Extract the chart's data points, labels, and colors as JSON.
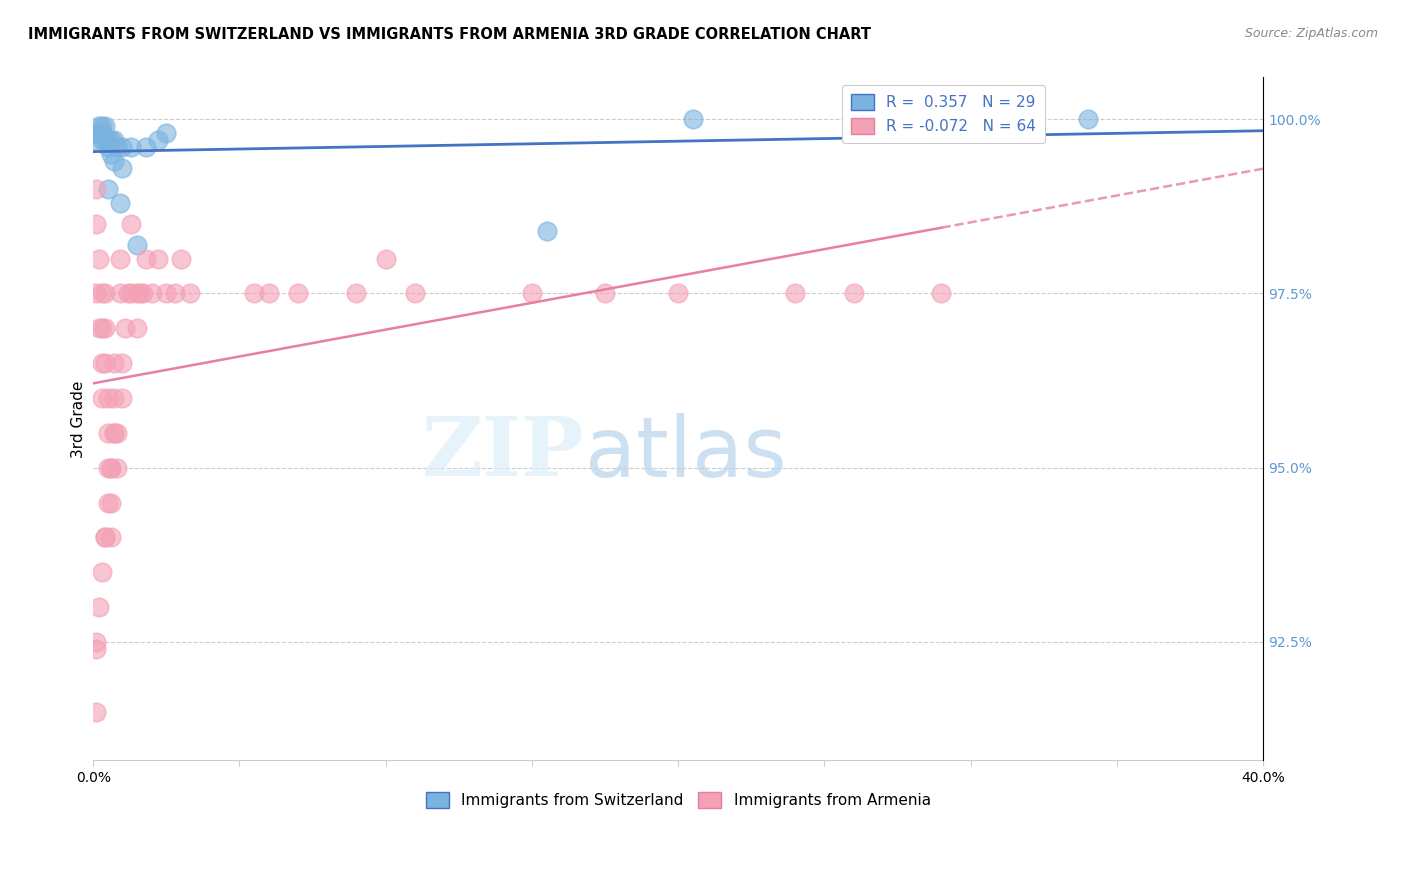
{
  "title": "IMMIGRANTS FROM SWITZERLAND VS IMMIGRANTS FROM ARMENIA 3RD GRADE CORRELATION CHART",
  "source": "Source: ZipAtlas.com",
  "ylabel": "3rd Grade",
  "ylabel_ticks": [
    "100.0%",
    "97.5%",
    "95.0%",
    "92.5%"
  ],
  "ylabel_values": [
    1.0,
    0.975,
    0.95,
    0.925
  ],
  "ymin": 0.908,
  "ymax": 1.006,
  "xmin": 0.0,
  "xmax": 0.4,
  "legend_r_swiss": "0.357",
  "legend_n_swiss": "29",
  "legend_r_armenia": "-0.072",
  "legend_n_armenia": "64",
  "legend_label_swiss": "Immigrants from Switzerland",
  "legend_label_armenia": "Immigrants from Armenia",
  "color_swiss": "#7ab3e0",
  "color_armenia": "#f4a0b5",
  "color_swiss_line": "#4472c4",
  "color_armenia_line": "#e87ea1",
  "color_right_axis": "#5b9bd5",
  "swiss_x": [
    0.001,
    0.001,
    0.002,
    0.002,
    0.003,
    0.003,
    0.003,
    0.004,
    0.004,
    0.005,
    0.005,
    0.005,
    0.006,
    0.006,
    0.007,
    0.007,
    0.008,
    0.009,
    0.01,
    0.01,
    0.013,
    0.015,
    0.018,
    0.022,
    0.155,
    0.205,
    0.27,
    0.34,
    0.025
  ],
  "swiss_y": [
    0.998,
    0.997,
    0.998,
    0.999,
    0.998,
    0.997,
    0.999,
    0.997,
    0.999,
    0.99,
    0.996,
    0.997,
    0.995,
    0.997,
    0.994,
    0.997,
    0.996,
    0.988,
    0.993,
    0.996,
    0.996,
    0.982,
    0.996,
    0.997,
    0.984,
    1.0,
    1.0,
    1.0,
    0.998
  ],
  "armenia_x": [
    0.001,
    0.001,
    0.001,
    0.002,
    0.002,
    0.003,
    0.003,
    0.003,
    0.003,
    0.004,
    0.004,
    0.004,
    0.004,
    0.005,
    0.005,
    0.005,
    0.006,
    0.006,
    0.006,
    0.007,
    0.007,
    0.007,
    0.008,
    0.008,
    0.009,
    0.009,
    0.01,
    0.01,
    0.011,
    0.012,
    0.013,
    0.013,
    0.015,
    0.015,
    0.016,
    0.017,
    0.018,
    0.02,
    0.022,
    0.025,
    0.028,
    0.03,
    0.033,
    0.055,
    0.06,
    0.07,
    0.09,
    0.1,
    0.11,
    0.15,
    0.175,
    0.2,
    0.24,
    0.26,
    0.29,
    0.001,
    0.001,
    0.001,
    0.002,
    0.003,
    0.004,
    0.005,
    0.006,
    0.007
  ],
  "armenia_y": [
    0.975,
    0.985,
    0.99,
    0.97,
    0.98,
    0.96,
    0.965,
    0.97,
    0.975,
    0.94,
    0.965,
    0.97,
    0.975,
    0.95,
    0.955,
    0.96,
    0.94,
    0.945,
    0.95,
    0.955,
    0.96,
    0.965,
    0.95,
    0.955,
    0.975,
    0.98,
    0.96,
    0.965,
    0.97,
    0.975,
    0.975,
    0.985,
    0.975,
    0.97,
    0.975,
    0.975,
    0.98,
    0.975,
    0.98,
    0.975,
    0.975,
    0.98,
    0.975,
    0.975,
    0.975,
    0.975,
    0.975,
    0.98,
    0.975,
    0.975,
    0.975,
    0.975,
    0.975,
    0.975,
    0.975,
    0.924,
    0.915,
    0.925,
    0.93,
    0.935,
    0.94,
    0.945,
    0.95,
    0.955
  ]
}
